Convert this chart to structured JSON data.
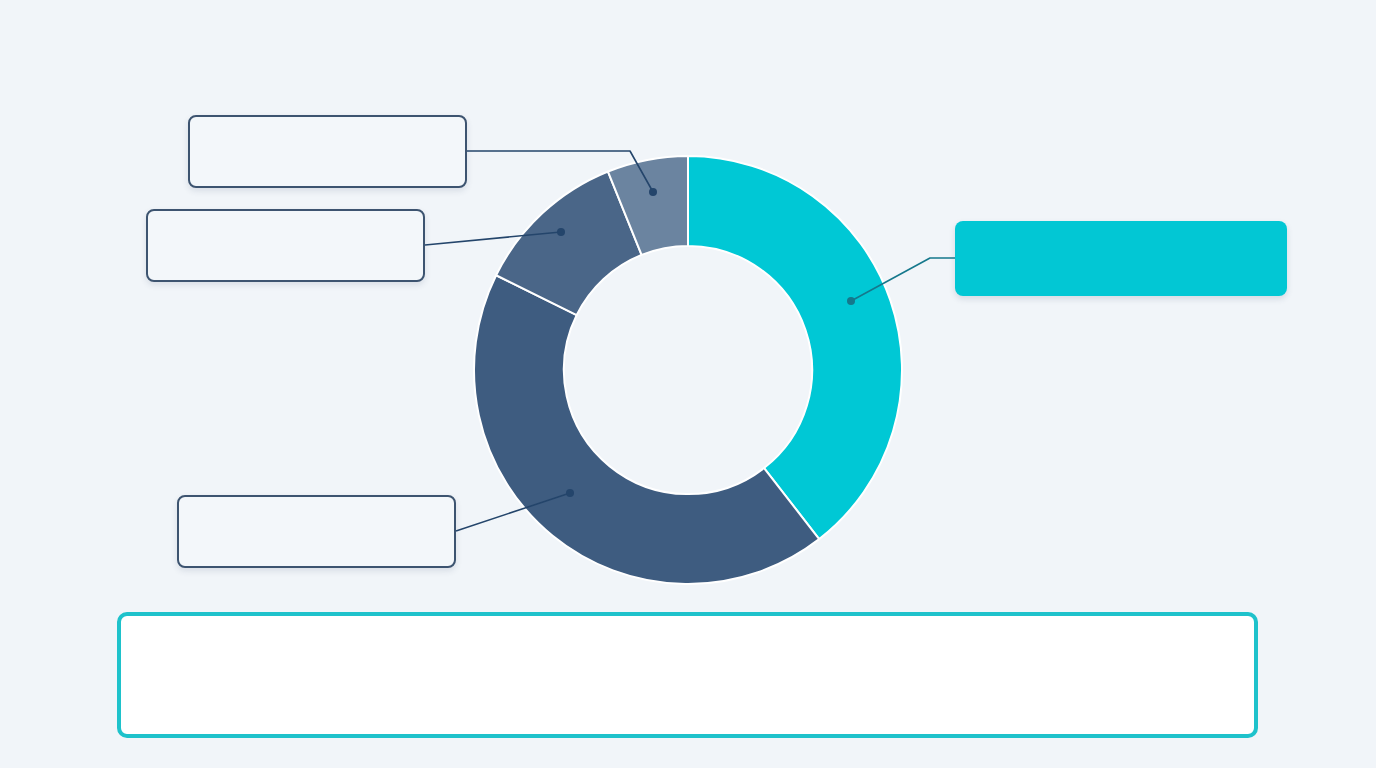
{
  "chart_data": {
    "type": "donut",
    "categories": [
      null,
      null,
      null,
      null
    ],
    "values": [
      39.5,
      42.8,
      11.6,
      6.1
    ],
    "colors": [
      "#00c8d5",
      "#3e5c80",
      "#4a6688",
      "#6b84a0"
    ]
  }
}
